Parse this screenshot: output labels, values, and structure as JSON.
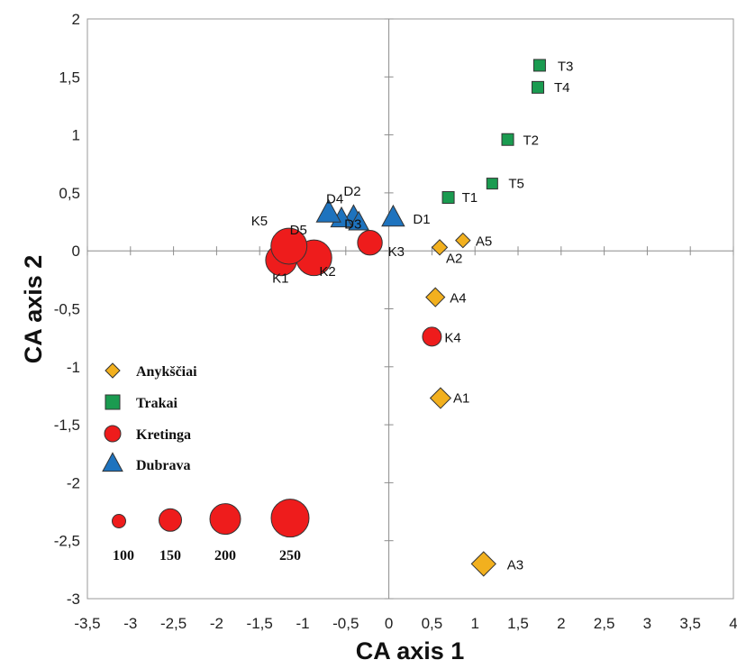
{
  "chart_data": {
    "type": "scatter",
    "xlabel": "CA axis 1",
    "ylabel": "CA axis 2",
    "xlim": [
      -3.5,
      4
    ],
    "ylim": [
      -3,
      2
    ],
    "x_ticks": [
      -3.5,
      -3,
      -2.5,
      -2,
      -1.5,
      -1,
      -0.5,
      0,
      0.5,
      1,
      1.5,
      2,
      2.5,
      3,
      3.5,
      4
    ],
    "x_tick_labels": [
      "-3,5",
      "-3",
      "-2,5",
      "-2",
      "-1,5",
      "-1",
      "-0,5",
      "0",
      "0,5",
      "1",
      "1,5",
      "2",
      "2,5",
      "3",
      "3,5",
      "4"
    ],
    "y_ticks": [
      -3,
      -2.5,
      -2,
      -1.5,
      -1,
      -0.5,
      0,
      0.5,
      1,
      1.5,
      2
    ],
    "y_tick_labels": [
      "-3",
      "-2,5",
      "-2",
      "-1,5",
      "-1",
      "-0,5",
      "0",
      "0,5",
      "1",
      "1,5",
      "2"
    ],
    "grid": false,
    "series": [
      {
        "name": "Anykščiai",
        "marker": "diamond",
        "color": "#F2B01E",
        "points": [
          {
            "label": "A1",
            "x": 0.6,
            "y": -1.27,
            "size": 180
          },
          {
            "label": "A2",
            "x": 0.59,
            "y": 0.03,
            "size": 100
          },
          {
            "label": "A3",
            "x": 1.1,
            "y": -2.7,
            "size": 250
          },
          {
            "label": "A4",
            "x": 0.54,
            "y": -0.4,
            "size": 150
          },
          {
            "label": "A5",
            "x": 0.86,
            "y": 0.09,
            "size": 90
          }
        ]
      },
      {
        "name": "Trakai",
        "marker": "square",
        "color": "#1A9B50",
        "points": [
          {
            "label": "T1",
            "x": 0.69,
            "y": 0.46,
            "size": 140
          },
          {
            "label": "T2",
            "x": 1.38,
            "y": 0.96,
            "size": 140
          },
          {
            "label": "T3",
            "x": 1.75,
            "y": 1.6,
            "size": 140
          },
          {
            "label": "T4",
            "x": 1.73,
            "y": 1.41,
            "size": 140
          },
          {
            "label": "T5",
            "x": 1.2,
            "y": 0.58,
            "size": 120
          }
        ]
      },
      {
        "name": "Kretinga",
        "marker": "circle",
        "color": "#EE1C1C",
        "points": [
          {
            "label": "K1",
            "x": -1.25,
            "y": -0.08,
            "size": 190
          },
          {
            "label": "K2",
            "x": -0.87,
            "y": -0.06,
            "size": 250
          },
          {
            "label": "K3",
            "x": -0.22,
            "y": 0.07,
            "size": 120
          },
          {
            "label": "K4",
            "x": 0.5,
            "y": -0.74,
            "size": 70
          },
          {
            "label": "K5",
            "x": -1.16,
            "y": 0.04,
            "size": 255
          }
        ]
      },
      {
        "name": "Dubrava",
        "marker": "triangle",
        "color": "#1E73BE",
        "points": [
          {
            "label": "D1",
            "x": 0.05,
            "y": 0.28,
            "size": 190
          },
          {
            "label": "D2",
            "x": -0.41,
            "y": 0.29,
            "size": 170
          },
          {
            "label": "D3",
            "x": -0.35,
            "y": 0.24,
            "size": 150
          },
          {
            "label": "D4",
            "x": -0.55,
            "y": 0.27,
            "size": 170
          },
          {
            "label": "D5",
            "x": -0.7,
            "y": 0.32,
            "size": 220
          }
        ]
      }
    ],
    "legend": {
      "placement": "bottom-left",
      "entries": [
        "Anykščiai",
        "Trakai",
        "Kretinga",
        "Dubrava"
      ]
    },
    "size_legend": {
      "values": [
        "100",
        "150",
        "200",
        "250"
      ],
      "sizes": [
        100,
        150,
        200,
        250
      ],
      "color": "#EE1C1C"
    }
  }
}
